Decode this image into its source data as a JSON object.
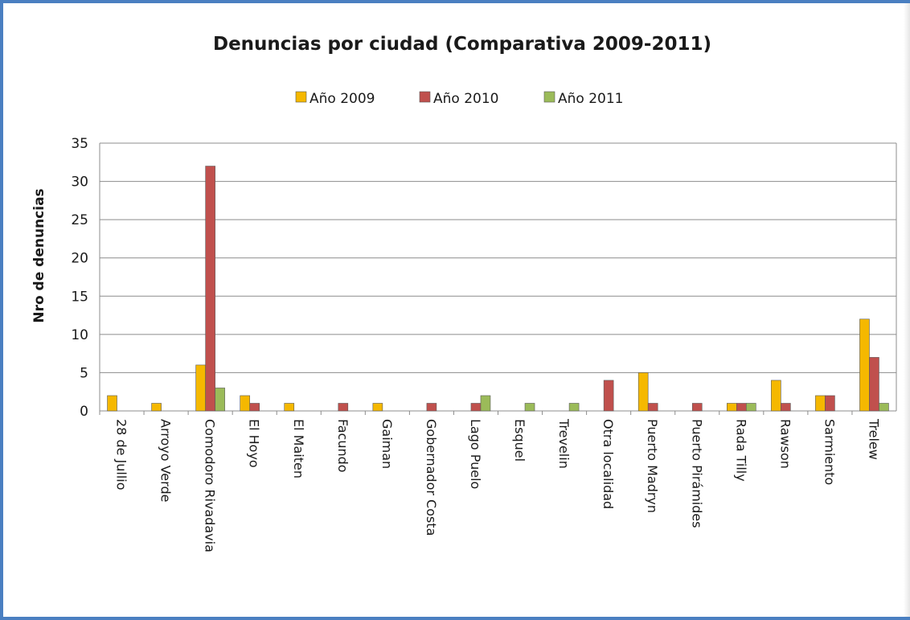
{
  "chart_data": {
    "type": "bar",
    "title": "Denuncias por ciudad (Comparativa 2009-2011)",
    "xlabel": "",
    "ylabel": "Nro de denuncias",
    "ylim": [
      0,
      35
    ],
    "yticks": [
      0,
      5,
      10,
      15,
      20,
      25,
      30,
      35
    ],
    "grid": true,
    "legend_position": "top",
    "categories": [
      "28 de Jullio",
      "Arroyo Verde",
      "Comodoro Rivadavia",
      "El Hoyo",
      "El Maiten",
      "Facundo",
      "Gaiman",
      "Gobernador Costa",
      "Lago Puelo",
      "Esquel",
      "Trevelin",
      "Otra localidad",
      "Puerto Madryn",
      "Puerto Pirámides",
      "Rada Tilly",
      "Rawson",
      "Sarmiento",
      "Trelew"
    ],
    "series": [
      {
        "name": "Año 2009",
        "color": "#f5b800",
        "values": [
          2,
          1,
          6,
          2,
          1,
          0,
          1,
          0,
          0,
          0,
          0,
          0,
          5,
          0,
          1,
          4,
          2,
          12
        ]
      },
      {
        "name": "Año 2010",
        "color": "#c0504d",
        "values": [
          0,
          0,
          32,
          1,
          0,
          1,
          0,
          1,
          1,
          0,
          0,
          4,
          1,
          1,
          1,
          1,
          2,
          7
        ]
      },
      {
        "name": "Año 2011",
        "color": "#9bbb59",
        "values": [
          0,
          0,
          3,
          0,
          0,
          0,
          0,
          0,
          2,
          1,
          1,
          0,
          0,
          0,
          1,
          0,
          0,
          1
        ]
      }
    ]
  }
}
